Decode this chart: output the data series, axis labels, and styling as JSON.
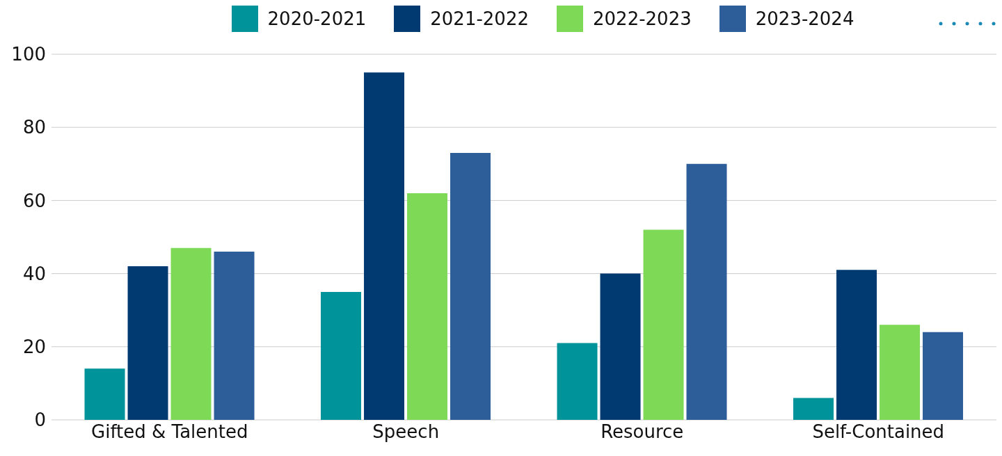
{
  "chart_data": {
    "type": "bar",
    "categories": [
      "Gifted & Talented",
      "Speech",
      "Resource",
      "Self-Contained"
    ],
    "series": [
      {
        "name": "2020-2021",
        "color": "#00939a",
        "values": [
          14,
          35,
          21,
          6
        ]
      },
      {
        "name": "2021-2022",
        "color": "#003a70",
        "values": [
          42,
          95,
          40,
          41
        ]
      },
      {
        "name": "2022-2023",
        "color": "#7ed957",
        "values": [
          47,
          62,
          52,
          26
        ]
      },
      {
        "name": "2023-2024",
        "color": "#2e5e99",
        "values": [
          46,
          73,
          70,
          24
        ]
      }
    ],
    "ylim": [
      0,
      100
    ],
    "yticks": [
      0,
      20,
      40,
      60,
      80,
      100
    ],
    "grid": "y",
    "legend": "top"
  }
}
